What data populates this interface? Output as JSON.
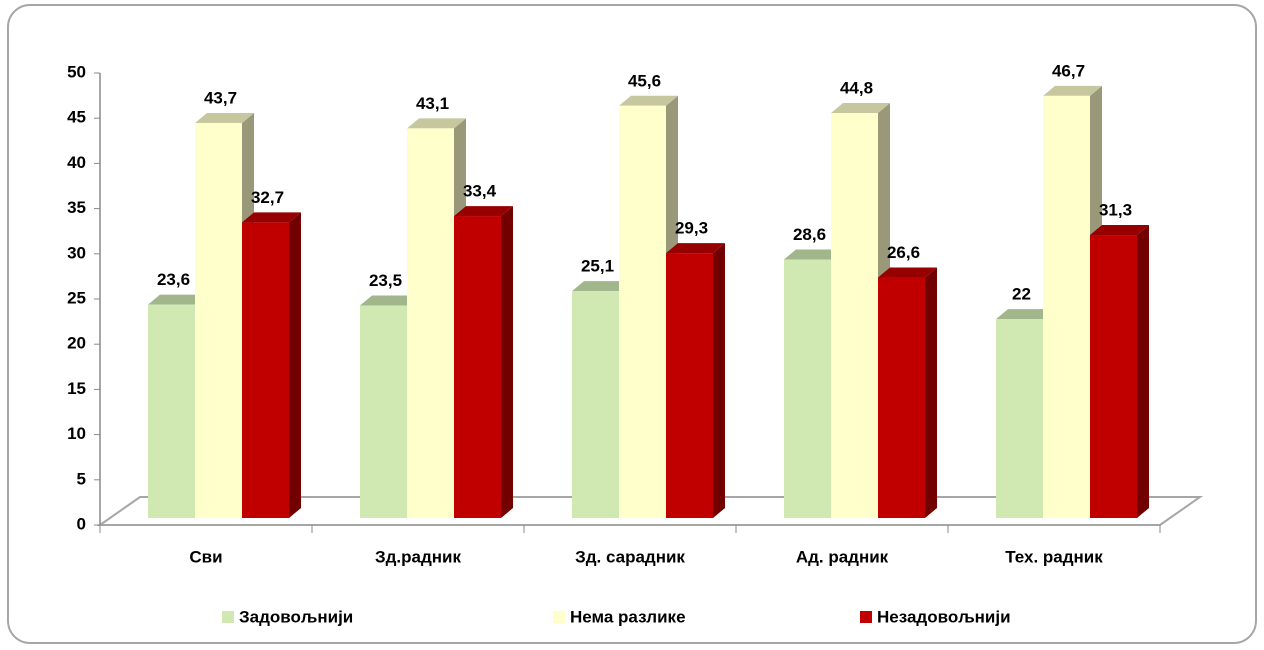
{
  "chart_data": {
    "type": "bar3d",
    "categories": [
      "Сви",
      "Зд.радник",
      "Зд. сарадник",
      "Ад. радник",
      "Тех. радник"
    ],
    "series": [
      {
        "name": "Задовољнији",
        "color": "#d0e9b2",
        "values": [
          23.6,
          23.5,
          25.1,
          28.6,
          22
        ],
        "value_labels": [
          "23,6",
          "23,5",
          "25,1",
          "28,6",
          "22"
        ]
      },
      {
        "name": "Нема разлике",
        "color": "#ffffcc",
        "values": [
          43.7,
          43.1,
          45.6,
          44.8,
          46.7
        ],
        "value_labels": [
          "43,7",
          "43,1",
          "45,6",
          "44,8",
          "46,7"
        ]
      },
      {
        "name": "Незадовољнији",
        "color": "#c00000",
        "values": [
          32.7,
          33.4,
          29.3,
          26.6,
          31.3
        ],
        "value_labels": [
          "32,7",
          "33,4",
          "29,3",
          "26,6",
          "31,3"
        ]
      }
    ],
    "ylim": [
      0,
      50
    ],
    "yticks": [
      0,
      5,
      10,
      15,
      20,
      25,
      30,
      35,
      40,
      45,
      50
    ],
    "legend": "bottom"
  }
}
